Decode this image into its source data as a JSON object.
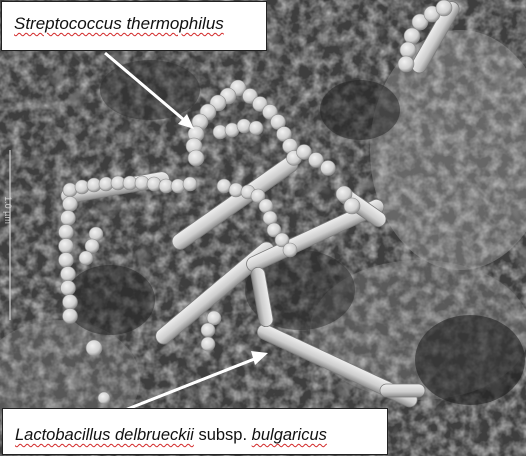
{
  "labels": {
    "top": {
      "text": "Streptococcus thermophilus"
    },
    "bottom": {
      "genus_species": "Lactobacillus delbrueckii",
      "subsp_abbrev": "subsp.",
      "subspecies": "bulgaricus"
    }
  },
  "scale_bar": {
    "text": "1.0 µm"
  },
  "colors": {
    "background_dark": "#3a3a3a",
    "matrix": "#8c8c8c",
    "bacteria": "#d7d7d7",
    "arrow": "#ffffff",
    "label_box": "#ffffff",
    "spellcheck_underline": "#d22828"
  }
}
